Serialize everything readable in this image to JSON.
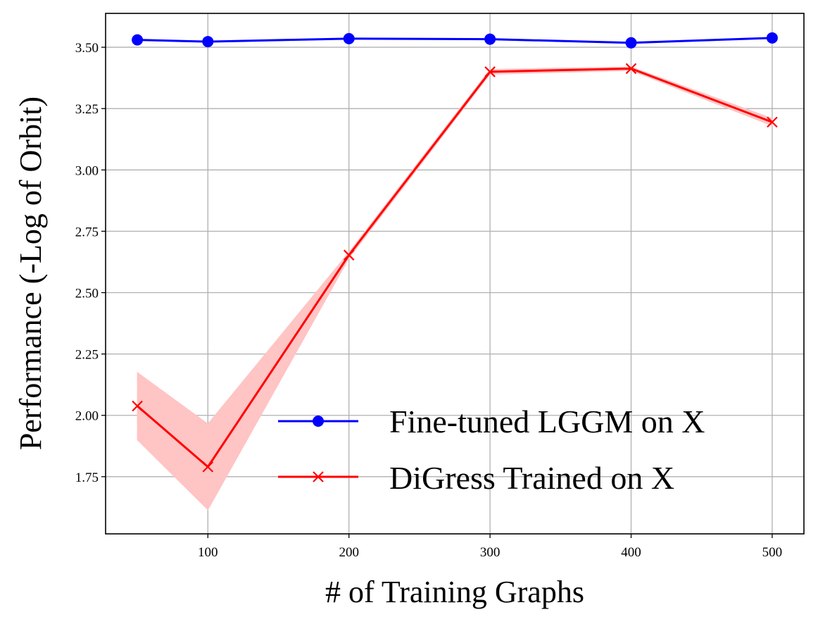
{
  "chart_data": {
    "type": "line",
    "title": "",
    "xlabel": "# of Training Graphs",
    "ylabel": "Performance (-Log of Orbit)",
    "x": [
      50,
      100,
      200,
      300,
      400,
      500
    ],
    "xlim": [
      27.5,
      522.5
    ],
    "ylim": [
      1.517,
      3.638
    ],
    "xticks": [
      100,
      200,
      300,
      400,
      500
    ],
    "xtick_labels": [
      "100",
      "200",
      "300",
      "400",
      "500"
    ],
    "yticks": [
      1.75,
      2.0,
      2.25,
      2.5,
      2.75,
      3.0,
      3.25,
      3.5
    ],
    "ytick_labels": [
      "1.75",
      "2.00",
      "2.25",
      "2.50",
      "2.75",
      "3.00",
      "3.25",
      "3.50"
    ],
    "grid": true,
    "legend_position": "lower-right",
    "series": [
      {
        "name": "Fine-tuned LGGM on X",
        "color": "#0000ff",
        "marker": "circle",
        "values": [
          3.53,
          3.523,
          3.535,
          3.533,
          3.518,
          3.538
        ],
        "band_lower": [
          3.53,
          3.523,
          3.535,
          3.533,
          3.518,
          3.538
        ],
        "band_upper": [
          3.53,
          3.523,
          3.535,
          3.533,
          3.518,
          3.538
        ]
      },
      {
        "name": "DiGress Trained on X",
        "color": "#ff0000",
        "marker": "x",
        "values": [
          2.038,
          1.79,
          2.653,
          3.4,
          3.413,
          3.195
        ],
        "band_lower": [
          1.9,
          1.615,
          2.64,
          3.39,
          3.405,
          3.18
        ],
        "band_upper": [
          2.175,
          1.965,
          2.665,
          3.41,
          3.42,
          3.21
        ],
        "band_color": "#ffc4c4"
      }
    ]
  }
}
